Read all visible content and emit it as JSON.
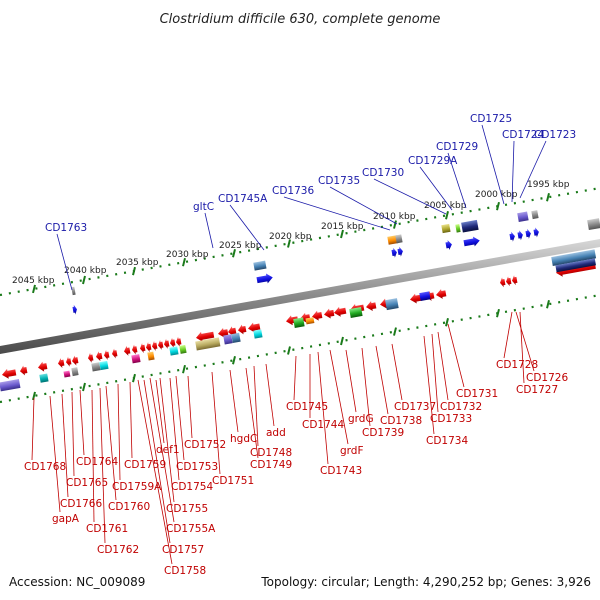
{
  "title": "Clostridium difficile 630, complete genome",
  "accession": "Accession: NC_009089",
  "summary": "Topology: circular; Length: 4,290,252 bp; Genes: 3,926",
  "kbp_ticks": [
    "2045 kbp",
    "2040 kbp",
    "2035 kbp",
    "2030 kbp",
    "2025 kbp",
    "2020 kbp",
    "2015 kbp",
    "2010 kbp",
    "2005 kbp",
    "2000 kbp",
    "1995 kbp"
  ],
  "top_labels": [
    "CD1763",
    "gltC",
    "CD1745A",
    "CD1736",
    "CD1735",
    "CD1730",
    "CD1729A",
    "CD1729",
    "CD1725",
    "CD1724",
    "CD1723"
  ],
  "bottom_labels": [
    "CD1768",
    "CD1766",
    "gapA",
    "CD1765",
    "CD1764",
    "CD1761",
    "CD1762",
    "CD1760",
    "CD1759A",
    "CD1759",
    "def1",
    "CD1758",
    "CD1757",
    "CD1755A",
    "CD1755",
    "CD1754",
    "CD1753",
    "CD1752",
    "CD1751",
    "hgdC",
    "CD1749",
    "CD1748",
    "add",
    "CD1745",
    "CD1744",
    "CD1743",
    "grdF",
    "grdG",
    "CD1739",
    "CD1738",
    "CD1737",
    "CD1734",
    "CD1733",
    "CD1732",
    "CD1731",
    "CD1728",
    "CD1727",
    "CD1726"
  ],
  "colors": {
    "forward": "#1010e0",
    "reverse": "#e80000",
    "label_top": "#1a1aa8",
    "label_bottom": "#c00000",
    "ruler": "#1a7a1a",
    "backbone": "#8a8a8a"
  }
}
